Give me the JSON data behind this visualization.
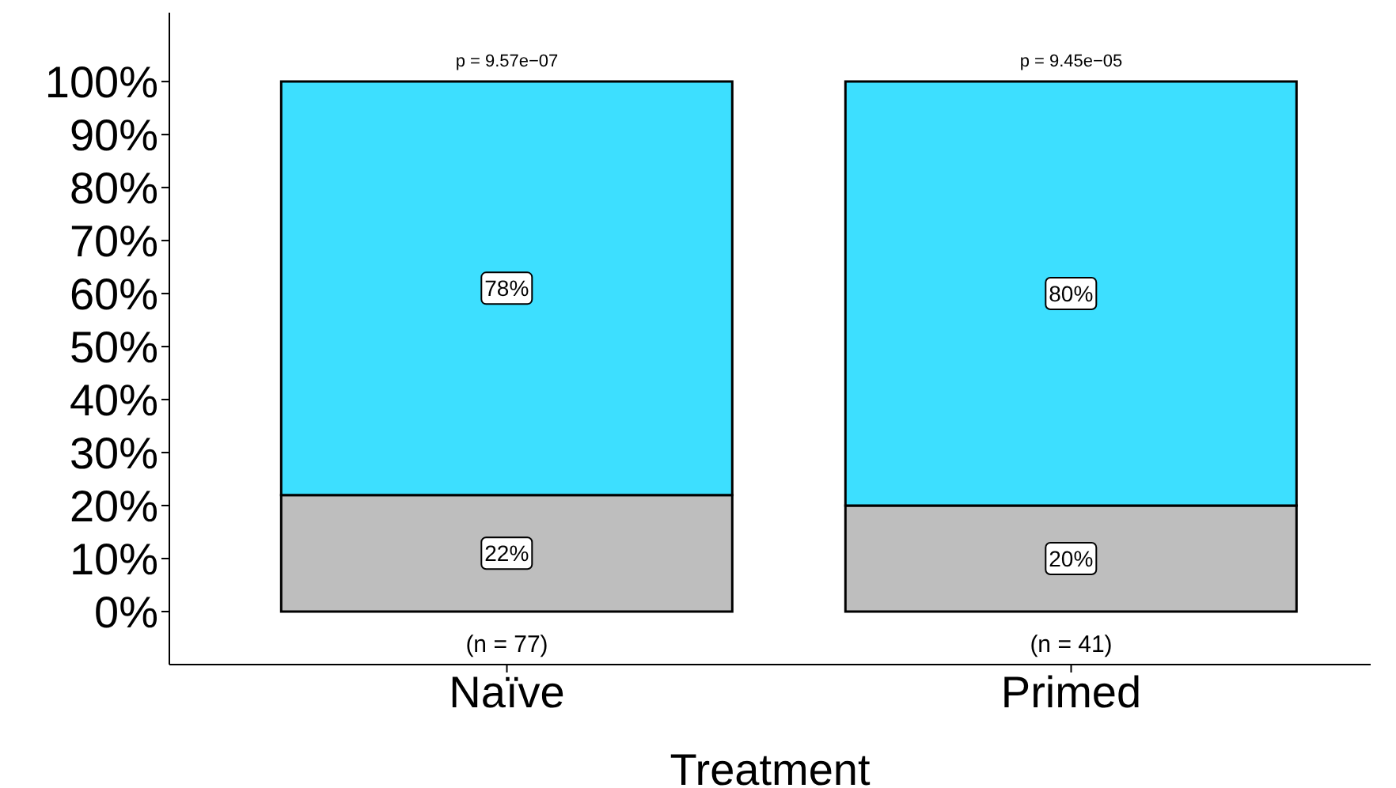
{
  "chart_data": {
    "type": "bar",
    "stacked": true,
    "categories": [
      "Naïve",
      "Primed"
    ],
    "series": [
      {
        "color": "#bebebe",
        "values": [
          22,
          20
        ],
        "value_labels": [
          "22%",
          "20%"
        ]
      },
      {
        "color": "#3ddfff",
        "values": [
          78,
          80
        ],
        "value_labels": [
          "78%",
          "80%"
        ]
      }
    ],
    "xlabel": "Treatment",
    "ylim": [
      -10,
      113
    ],
    "yticks": [
      {
        "value": 0,
        "label": "0%"
      },
      {
        "value": 10,
        "label": "10%"
      },
      {
        "value": 20,
        "label": "20%"
      },
      {
        "value": 30,
        "label": "30%"
      },
      {
        "value": 40,
        "label": "40%"
      },
      {
        "value": 50,
        "label": "50%"
      },
      {
        "value": 60,
        "label": "60%"
      },
      {
        "value": 70,
        "label": "70%"
      },
      {
        "value": 80,
        "label": "80%"
      },
      {
        "value": 90,
        "label": "90%"
      },
      {
        "value": 100,
        "label": "100%"
      }
    ],
    "annotations": [
      "p = 9.57e−07",
      "p = 9.45e−05",
      "(n = 77)",
      "(n = 41)"
    ],
    "grid": false,
    "legend": false
  }
}
